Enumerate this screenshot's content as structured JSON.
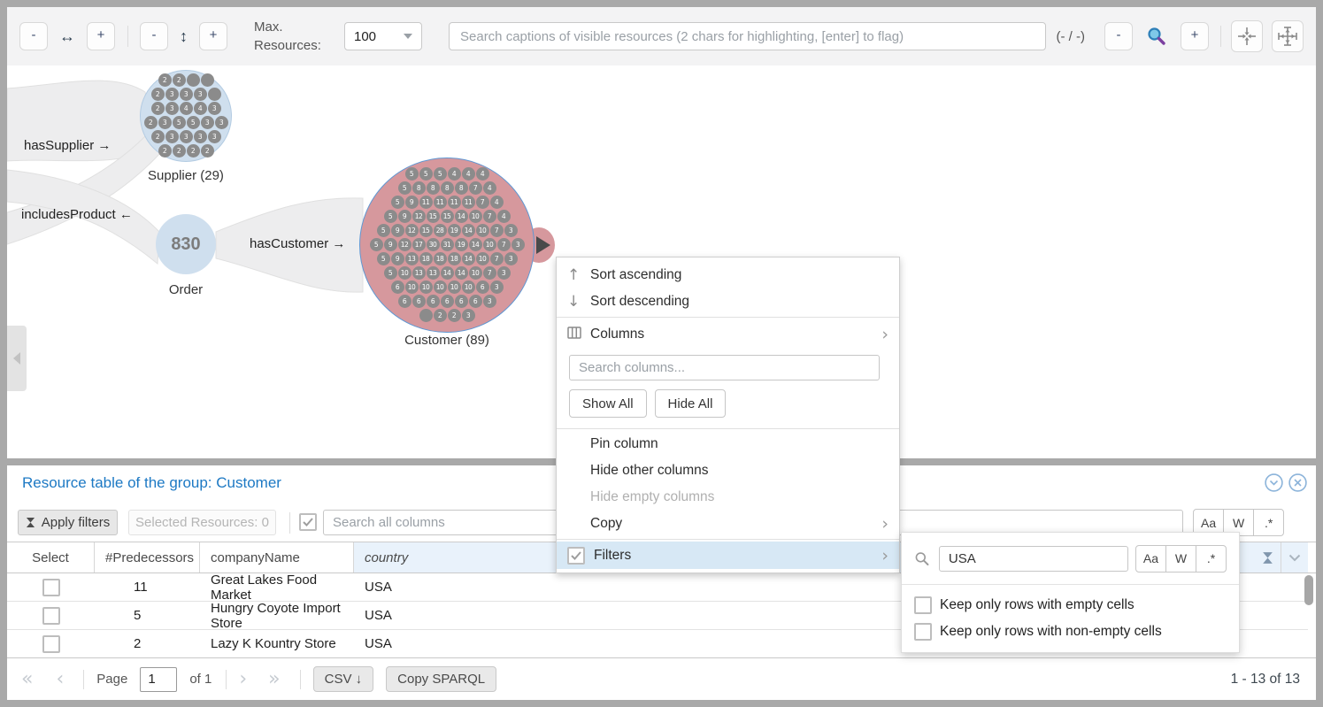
{
  "toolbar": {
    "zoom_h_out": "-",
    "h_arrow": "↔",
    "zoom_h_in": "+",
    "zoom_v_out": "-",
    "v_arrow": "↕",
    "zoom_v_in": "+",
    "max_resources_label": "Max. Resources:",
    "max_resources_value": "100",
    "search_placeholder": "Search captions of visible resources (2 chars for highlighting, [enter] to flag)",
    "match_counter": "(- / -)",
    "zoom_out": "-",
    "zoom_in": "+"
  },
  "graph": {
    "edge_labels": {
      "has_supplier": "hasSupplier →",
      "includes_product": "includesProduct ←",
      "has_customer": "hasCustomer →"
    },
    "supplier": {
      "label": "Supplier (29)",
      "dot_rows": [
        [
          "2",
          "2",
          "",
          ""
        ],
        [
          "2",
          "3",
          "3",
          "3",
          ""
        ],
        [
          "2",
          "3",
          "4",
          "4",
          "3"
        ],
        [
          "2",
          "3",
          "5",
          "5",
          "3",
          "3"
        ],
        [
          "2",
          "3",
          "3",
          "3",
          "3"
        ],
        [
          "2",
          "2",
          "2",
          "2"
        ]
      ]
    },
    "order": {
      "label": "Order",
      "value": "830"
    },
    "customer": {
      "label": "Customer (89)",
      "dot_rows": [
        [
          "5",
          "5",
          "5",
          "4",
          "4",
          "4"
        ],
        [
          "5",
          "8",
          "8",
          "8",
          "8",
          "7",
          "4"
        ],
        [
          "5",
          "9",
          "11",
          "11",
          "11",
          "11",
          "7",
          "4"
        ],
        [
          "5",
          "9",
          "12",
          "15",
          "15",
          "14",
          "10",
          "7",
          "4"
        ],
        [
          "5",
          "9",
          "12",
          "15",
          "28",
          "19",
          "14",
          "10",
          "7",
          "3"
        ],
        [
          "5",
          "9",
          "12",
          "17",
          "30",
          "31",
          "19",
          "14",
          "10",
          "7",
          "3"
        ],
        [
          "5",
          "9",
          "13",
          "18",
          "18",
          "18",
          "14",
          "10",
          "7",
          "3"
        ],
        [
          "5",
          "10",
          "13",
          "13",
          "14",
          "14",
          "10",
          "7",
          "3"
        ],
        [
          "6",
          "10",
          "10",
          "10",
          "10",
          "10",
          "6",
          "3"
        ],
        [
          "6",
          "6",
          "6",
          "6",
          "6",
          "6",
          "3"
        ],
        [
          "",
          "2",
          "2",
          "3"
        ]
      ]
    }
  },
  "context_menu": {
    "sort_ascending": "Sort ascending",
    "sort_descending": "Sort descending",
    "columns": "Columns",
    "search_columns_placeholder": "Search columns...",
    "show_all": "Show All",
    "hide_all": "Hide All",
    "pin_column": "Pin column",
    "hide_other_columns": "Hide other columns",
    "hide_empty_columns": "Hide empty columns",
    "copy": "Copy",
    "filters": "Filters"
  },
  "filter_popup": {
    "search_value": "USA",
    "case_button": "Aa",
    "word_button": "W",
    "regex_button": ".*",
    "keep_empty_label": "Keep only rows with empty cells",
    "keep_non_empty_label": "Keep only rows with non-empty cells"
  },
  "table": {
    "title": "Resource table of the group: Customer",
    "apply_filters_label": "Apply filters",
    "selected_resources_label": "Selected Resources: 0",
    "search_all_placeholder": "Search all columns",
    "case_button": "Aa",
    "word_button": "W",
    "regex_button": ".*",
    "columns": [
      "Select",
      "#Predecessors",
      "companyName",
      "country"
    ],
    "rows": [
      {
        "selected": false,
        "predecessors": "11",
        "companyName": "Great Lakes Food Market",
        "country": "USA"
      },
      {
        "selected": false,
        "predecessors": "5",
        "companyName": "Hungry Coyote Import Store",
        "country": "USA"
      },
      {
        "selected": false,
        "predecessors": "2",
        "companyName": "Lazy K Kountry Store",
        "country": "USA"
      }
    ]
  },
  "pagination": {
    "page_label": "Page",
    "page_value": "1",
    "of_label": "of 1",
    "csv_label": "CSV ↓",
    "copy_sparql_label": "Copy SPARQL",
    "range_text": "1 - 13 of 13"
  },
  "icons": {
    "sort_asc": "↑",
    "sort_desc": "↓",
    "submenu_chevron": "›",
    "first_page": "«",
    "prev_page": "‹",
    "next_page": "›",
    "last_page": "»"
  },
  "colors": {
    "accent_blue": "#1d79c4",
    "node_blue": "#cfdfee",
    "customer_pink": "#d6989d",
    "filters_highlight": "#d7e8f5",
    "country_header_bg": "#e9f2fb"
  }
}
